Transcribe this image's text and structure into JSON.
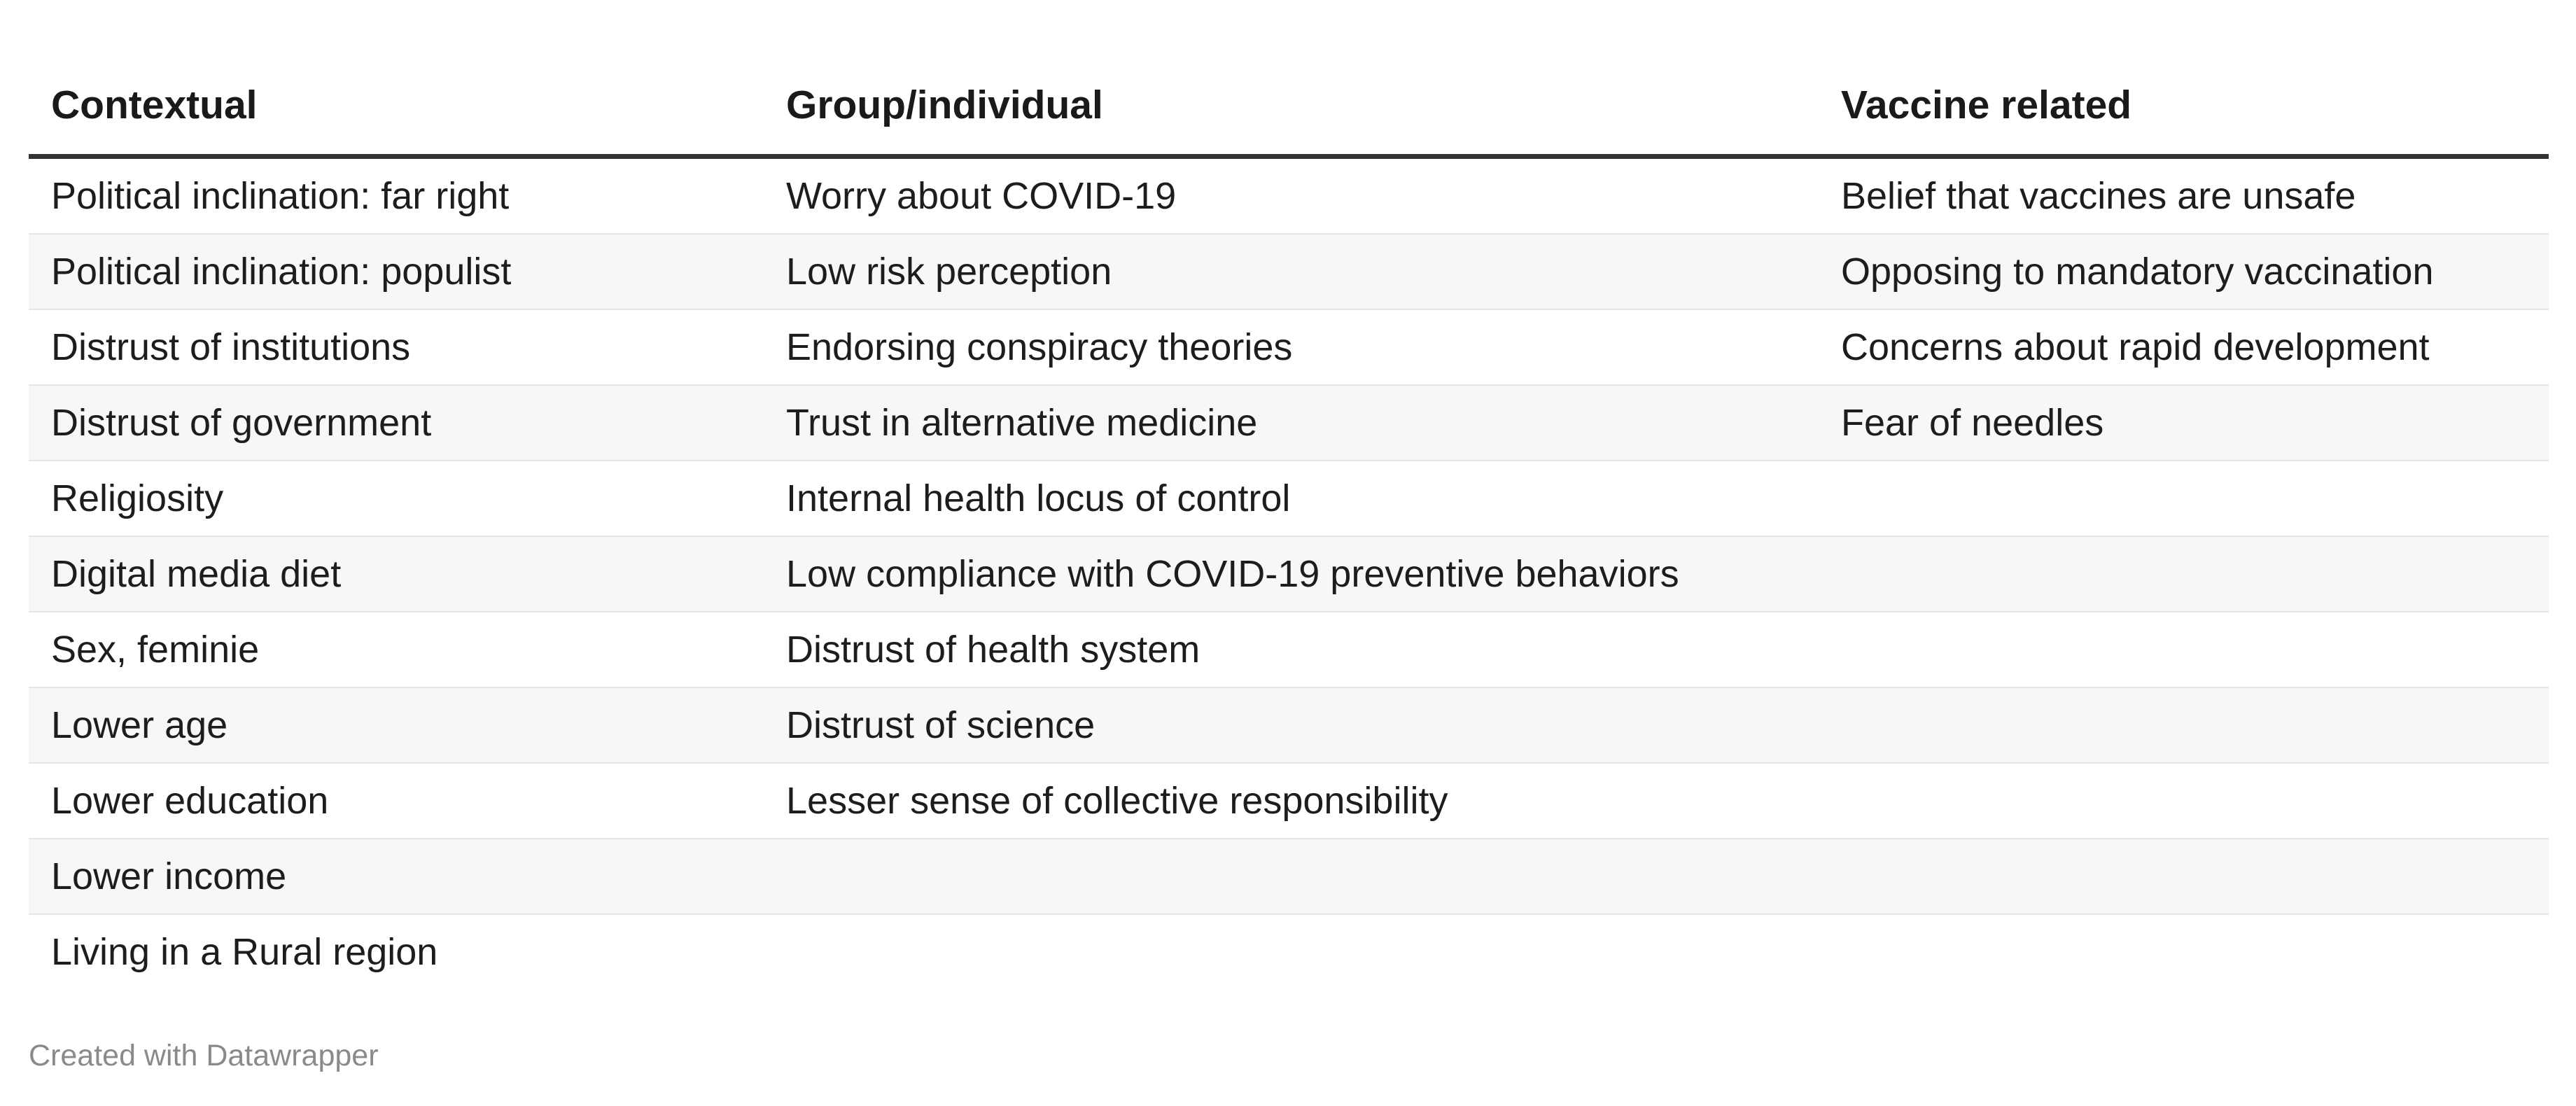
{
  "table": {
    "headers": [
      "Contextual",
      "Group/individual",
      "Vaccine related"
    ],
    "rows": [
      [
        "Political inclination: far right",
        "Worry about COVID-19",
        "Belief that vaccines are unsafe"
      ],
      [
        "Political inclination: populist",
        "Low risk perception",
        "Opposing to mandatory vaccination"
      ],
      [
        "Distrust of institutions",
        "Endorsing conspiracy theories",
        "Concerns about rapid development"
      ],
      [
        "Distrust of government",
        "Trust in alternative medicine",
        "Fear of needles"
      ],
      [
        "Religiosity",
        "Internal health locus of control",
        ""
      ],
      [
        "Digital media diet",
        "Low compliance with COVID-19 preventive behaviors",
        ""
      ],
      [
        "Sex, feminie",
        "Distrust of health system",
        ""
      ],
      [
        "Lower age",
        "Distrust of science",
        ""
      ],
      [
        "Lower education",
        "Lesser sense of collective responsibility",
        ""
      ],
      [
        "Lower income",
        "",
        ""
      ],
      [
        "Living in a Rural region",
        "",
        ""
      ]
    ]
  },
  "footer": {
    "credit": "Created with Datawrapper"
  }
}
